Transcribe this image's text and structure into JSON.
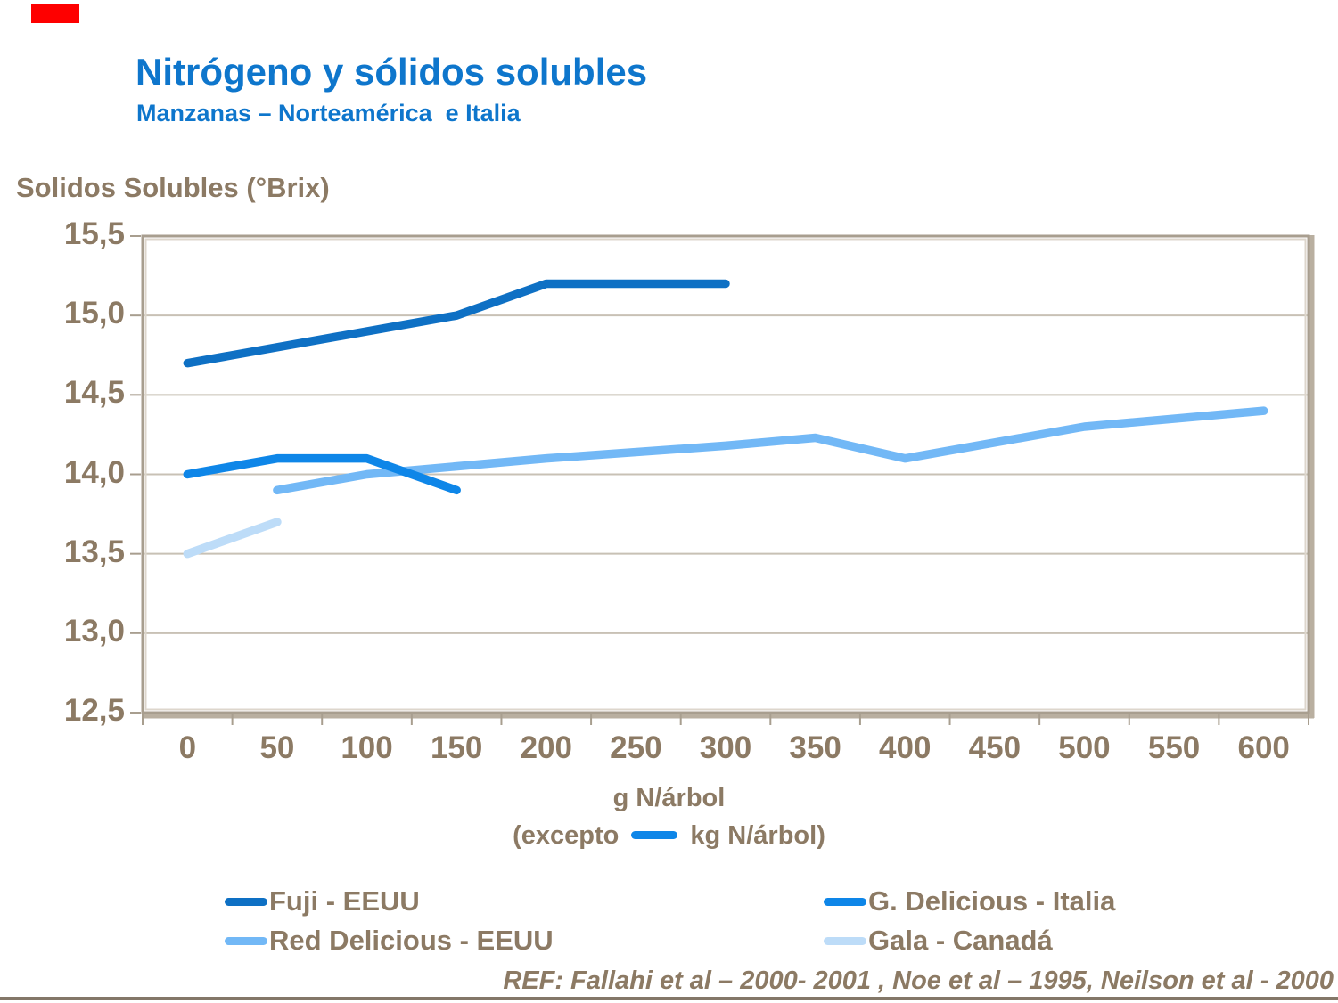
{
  "slide": {
    "title": "Nitrógeno y sólidos solubles",
    "subtitle": "Manzanas – Norteamérica  e Italia",
    "footer": "REF: Fallahi et al – 2000- 2001 , Noe et al – 1995, Neilson et al - 2000",
    "colors": {
      "title_blue": "#0e76cc",
      "text_tan": "#8c7a64",
      "red_mark": "#fe0000",
      "gridline": "#c8c1b5",
      "frame": "#a89e8f",
      "frame_shadow": "#b9afa0",
      "frame_highlight": "#ddd6cc",
      "bottom_rule": "#837768"
    }
  },
  "chart_data": {
    "type": "line",
    "title": "",
    "ylabel": "Solidos Solubles (°Brix)",
    "xlabel": "g N/árbol",
    "x_axis_note_pre": "(excepto",
    "x_axis_note_post": "kg N/árbol)",
    "note_dash_color": "#0e86e8",
    "grid": true,
    "legend_position": "bottom",
    "ylim": [
      12.5,
      15.5
    ],
    "y_ticks": [
      {
        "value": 15.5,
        "label": "15,5"
      },
      {
        "value": 15.0,
        "label": "15,0"
      },
      {
        "value": 14.5,
        "label": "14,5"
      },
      {
        "value": 14.0,
        "label": "14,0"
      },
      {
        "value": 13.5,
        "label": "13,5"
      },
      {
        "value": 13.0,
        "label": "13,0"
      },
      {
        "value": 12.5,
        "label": "12,5"
      }
    ],
    "gridline_values": [
      15.0,
      14.5,
      14.0,
      13.5,
      13.0
    ],
    "x_ticks": [
      {
        "value": 0,
        "label": "0"
      },
      {
        "value": 50,
        "label": "50"
      },
      {
        "value": 100,
        "label": "100"
      },
      {
        "value": 150,
        "label": "150"
      },
      {
        "value": 200,
        "label": "200"
      },
      {
        "value": 250,
        "label": "250"
      },
      {
        "value": 300,
        "label": "300"
      },
      {
        "value": 350,
        "label": "350"
      },
      {
        "value": 400,
        "label": "400"
      },
      {
        "value": 450,
        "label": "450"
      },
      {
        "value": 500,
        "label": "500"
      },
      {
        "value": 550,
        "label": "550"
      },
      {
        "value": 600,
        "label": "600"
      }
    ],
    "series": [
      {
        "name": "Red Delicious - EEUU",
        "color": "#72b8f6",
        "points": [
          [
            50,
            13.9
          ],
          [
            100,
            14.0
          ],
          [
            200,
            14.1
          ],
          [
            300,
            14.18
          ],
          [
            350,
            14.23
          ],
          [
            400,
            14.1
          ],
          [
            500,
            14.3
          ],
          [
            600,
            14.4
          ]
        ]
      },
      {
        "name": "Gala - Canadá",
        "color": "#bddcf8",
        "points": [
          [
            0,
            13.5
          ],
          [
            50,
            13.7
          ]
        ]
      },
      {
        "name": "G. Delicious - Italia",
        "color": "#0e86e8",
        "points": [
          [
            0,
            14.0
          ],
          [
            50,
            14.1
          ],
          [
            100,
            14.1
          ],
          [
            150,
            13.9
          ]
        ]
      },
      {
        "name": "Fuji - EEUU",
        "color": "#0e70c4",
        "points": [
          [
            0,
            14.7
          ],
          [
            150,
            15.0
          ],
          [
            200,
            15.2
          ],
          [
            300,
            15.2
          ]
        ]
      }
    ],
    "legend": [
      {
        "label": "Fuji - EEUU",
        "color": "#0e70c4",
        "col": 0,
        "row": 0
      },
      {
        "label": "G. Delicious - Italia",
        "color": "#0e86e8",
        "col": 1,
        "row": 0
      },
      {
        "label": "Red Delicious - EEUU",
        "color": "#72b8f6",
        "col": 0,
        "row": 1
      },
      {
        "label": "Gala - Canadá",
        "color": "#bddcf8",
        "col": 1,
        "row": 1
      }
    ]
  }
}
